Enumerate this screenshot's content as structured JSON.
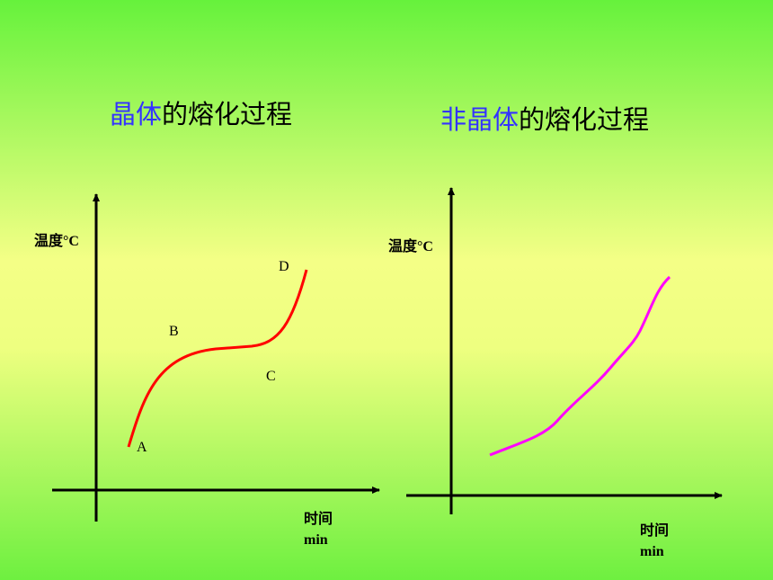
{
  "left": {
    "title_highlight": "晶体",
    "title_rest": "的熔化过程",
    "y_label": "温度°C",
    "x_label": "时间",
    "x_unit": "min",
    "points": [
      "A",
      "B",
      "C",
      "D"
    ]
  },
  "right": {
    "title_highlight": "非晶体",
    "title_rest": "的熔化过程",
    "y_label": "温度°C",
    "x_label": "时间",
    "x_unit": "min"
  }
}
